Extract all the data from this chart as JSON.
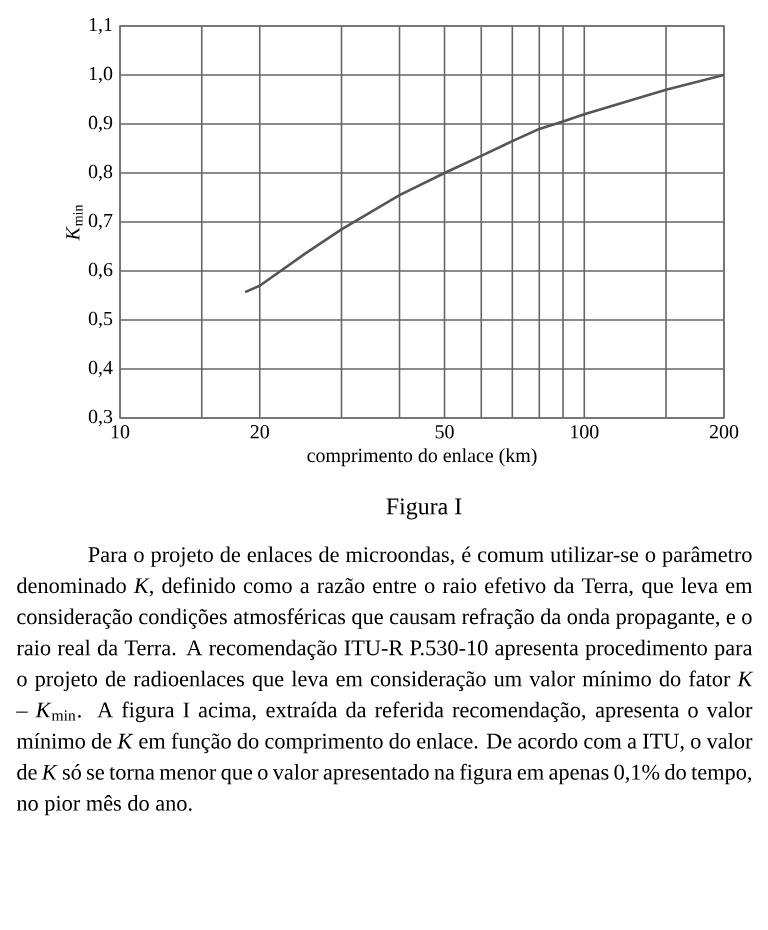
{
  "chart_data": {
    "type": "line",
    "title": "Figura I",
    "xlabel": "comprimento do enlace (km)",
    "ylabel": "*K*$_{min}$",
    "x": [
      18.6,
      20,
      25,
      30,
      40,
      50,
      60,
      70,
      80,
      90,
      100,
      150,
      200
    ],
    "series": [
      {
        "color": "#555555",
        "values": [
          0.557,
          0.57,
          0.635,
          0.685,
          0.755,
          0.8,
          0.835,
          0.865,
          0.89,
          0.905,
          0.92,
          0.97,
          1.0
        ]
      }
    ],
    "log": "x",
    "grid": true,
    "marker": "none",
    "line_style": "solid",
    "xlim": [
      10,
      200
    ],
    "xticks": [
      10,
      {
        "value": 15,
        "label": null
      },
      20,
      {
        "value": 30,
        "label": null
      },
      {
        "value": 40,
        "label": null
      },
      50,
      {
        "value": 60,
        "label": null
      },
      {
        "value": 70,
        "label": null
      },
      {
        "value": 80,
        "label": null
      },
      {
        "value": 90,
        "label": null
      },
      100,
      {
        "value": 150,
        "label": null
      },
      200
    ],
    "ylim": [
      0.3,
      1.1
    ],
    "yticks": [
      {
        "value": 0.3,
        "label": "0,3"
      },
      {
        "value": 0.4,
        "label": "0,4"
      },
      {
        "value": 0.5,
        "label": "0,5"
      },
      {
        "value": 0.6,
        "label": "0,6"
      },
      {
        "value": 0.7,
        "label": "0,7"
      },
      {
        "value": 0.8,
        "label": "0,8"
      },
      {
        "value": 0.9,
        "label": "0,9"
      },
      {
        "value": 1.0,
        "label": "1,0"
      },
      {
        "value": 1.1,
        "label": "1,1"
      }
    ],
    "annotations": [
      "Para o projeto de enlaces de microondas, é comum utilizar-se o parâmetro denominado *K*, definido como a razão entre o raio efetivo da Terra, que leva em consideração condições atmosféricas que causam refração da onda propagante, e o raio real da Terra. A recomendação ITU-R P.530-10 apresenta procedimento para o projeto de radioenlaces que leva em consideração um valor mínimo do fator *K* – *K*$_{min}$. A figura I acima, extraída da referida recomendação, apresenta o valor mínimo de *K* em função do comprimento do enlace. De acordo com a ITU, o valor de *K* só se torna menor que o valor apresentado na figura em apenas 0,1% do tempo, no pior mês do ano."
    ]
  }
}
